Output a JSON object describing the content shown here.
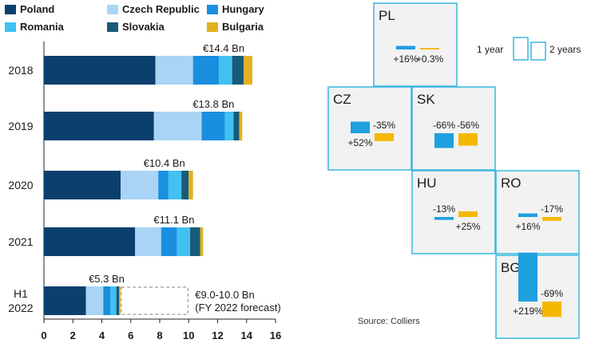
{
  "colors": {
    "poland": "#0b3f6e",
    "czech": "#a9d4f5",
    "hungary": "#1a8fe0",
    "romania": "#42c1f2",
    "slovakia": "#175b78",
    "bulgaria": "#e3b021",
    "tile_fill": "#f2f2f2",
    "tile_border": "#38b7e0",
    "one_year": "#1e9fe0",
    "two_years": "#f5b800"
  },
  "chart_data": [
    {
      "type": "bar",
      "orientation": "horizontal",
      "stacked": true,
      "title": "",
      "legend": [
        {
          "key": "poland",
          "label": "Poland"
        },
        {
          "key": "czech",
          "label": "Czech Republic"
        },
        {
          "key": "hungary",
          "label": "Hungary"
        },
        {
          "key": "romania",
          "label": "Romania"
        },
        {
          "key": "slovakia",
          "label": "Slovakia"
        },
        {
          "key": "bulgaria",
          "label": "Bulgaria"
        }
      ],
      "categories": [
        {
          "lines": [
            "2018"
          ],
          "total_label": "€14.4 Bn"
        },
        {
          "lines": [
            "2019"
          ],
          "total_label": "€13.8 Bn"
        },
        {
          "lines": [
            "2020"
          ],
          "total_label": "€10.4 Bn"
        },
        {
          "lines": [
            "2021"
          ],
          "total_label": "€11.1 Bn"
        },
        {
          "lines": [
            "H1",
            "2022"
          ],
          "total_label": "€5.3 Bn"
        }
      ],
      "series": [
        {
          "key": "poland",
          "name": "Poland",
          "values": [
            7.7,
            7.6,
            5.3,
            6.3,
            2.9
          ]
        },
        {
          "key": "czech",
          "name": "Czech Republic",
          "values": [
            2.6,
            3.3,
            2.6,
            1.8,
            1.2
          ]
        },
        {
          "key": "hungary",
          "name": "Hungary",
          "values": [
            1.8,
            1.6,
            0.7,
            1.1,
            0.5
          ]
        },
        {
          "key": "romania",
          "name": "Romania",
          "values": [
            0.9,
            0.6,
            0.9,
            0.9,
            0.4
          ]
        },
        {
          "key": "slovakia",
          "name": "Slovakia",
          "values": [
            0.8,
            0.4,
            0.5,
            0.7,
            0.2
          ]
        },
        {
          "key": "bulgaria",
          "name": "Bulgaria",
          "values": [
            0.6,
            0.2,
            0.3,
            0.2,
            0.1
          ]
        }
      ],
      "forecast": {
        "category_index": 4,
        "range": [
          5.3,
          10.0
        ],
        "label_lines": [
          "€9.0-10.0 Bn",
          "(FY 2022 forecast)"
        ]
      },
      "xlim": [
        0,
        16
      ],
      "xticks": [
        0,
        2,
        4,
        6,
        8,
        10,
        12,
        14,
        16
      ],
      "xlabel": "",
      "ylabel": ""
    },
    {
      "type": "bar",
      "layout": "tile-map",
      "title": "",
      "key": {
        "one_year_label": "1 year",
        "two_years_label": "2 years"
      },
      "source": "Source: Colliers",
      "countries": [
        {
          "code": "PL",
          "one_year_pct": 16,
          "two_year_pct": 0.3,
          "one_year_label": "+16%",
          "two_year_label": "+0.3%"
        },
        {
          "code": "CZ",
          "one_year_pct": 52,
          "two_year_pct": -35,
          "one_year_label": "+52%",
          "two_year_label": "-35%"
        },
        {
          "code": "SK",
          "one_year_pct": -66,
          "two_year_pct": -56,
          "one_year_label": "-66%",
          "two_year_label": "-56%"
        },
        {
          "code": "HU",
          "one_year_pct": -13,
          "two_year_pct": 25,
          "one_year_label": "-13%",
          "two_year_label": "+25%"
        },
        {
          "code": "RO",
          "one_year_pct": 16,
          "two_year_pct": -17,
          "one_year_label": "+16%",
          "two_year_label": "-17%"
        },
        {
          "code": "BG",
          "one_year_pct": 219,
          "two_year_pct": -69,
          "one_year_label": "+219%",
          "two_year_label": "-69%"
        }
      ]
    }
  ]
}
